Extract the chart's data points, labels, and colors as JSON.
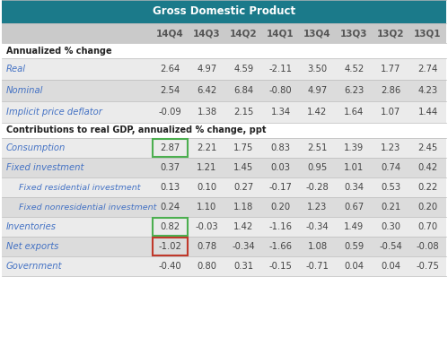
{
  "title": "Gross Domestic Product",
  "columns": [
    "14Q4",
    "14Q3",
    "14Q2",
    "14Q1",
    "13Q4",
    "13Q3",
    "13Q2",
    "13Q1"
  ],
  "section1_header": "Annualized % change",
  "section1_rows": [
    [
      "Real",
      "2.64",
      "4.97",
      "4.59",
      "-2.11",
      "3.50",
      "4.52",
      "1.77",
      "2.74"
    ],
    [
      "Nominal",
      "2.54",
      "6.42",
      "6.84",
      "-0.80",
      "4.97",
      "6.23",
      "2.86",
      "4.23"
    ],
    [
      "Implicit price deflator",
      "-0.09",
      "1.38",
      "2.15",
      "1.34",
      "1.42",
      "1.64",
      "1.07",
      "1.44"
    ]
  ],
  "section2_header": "Contributions to real GDP, annualized % change, ppt",
  "section2_rows": [
    [
      "Consumption",
      "2.87",
      "2.21",
      "1.75",
      "0.83",
      "2.51",
      "1.39",
      "1.23",
      "2.45"
    ],
    [
      "Fixed investment",
      "0.37",
      "1.21",
      "1.45",
      "0.03",
      "0.95",
      "1.01",
      "0.74",
      "0.42"
    ],
    [
      "Fixed residential investment",
      "0.13",
      "0.10",
      "0.27",
      "-0.17",
      "-0.28",
      "0.34",
      "0.53",
      "0.22"
    ],
    [
      "Fixed nonresidential investment",
      "0.24",
      "1.10",
      "1.18",
      "0.20",
      "1.23",
      "0.67",
      "0.21",
      "0.20"
    ],
    [
      "Inventories",
      "0.82",
      "-0.03",
      "1.42",
      "-1.16",
      "-0.34",
      "1.49",
      "0.30",
      "0.70"
    ],
    [
      "Net exports",
      "-1.02",
      "0.78",
      "-0.34",
      "-1.66",
      "1.08",
      "0.59",
      "-0.54",
      "-0.08"
    ],
    [
      "Government",
      "-0.40",
      "0.80",
      "0.31",
      "-0.15",
      "-0.71",
      "0.04",
      "0.04",
      "-0.75"
    ]
  ],
  "title_bg": "#1B7A8A",
  "title_color": "#FFFFFF",
  "header_bg": "#CACACA",
  "header_color": "#555555",
  "section_header_color": "#222222",
  "row_label_color_s1": "#4472C4",
  "row_label_color_s2": "#4472C4",
  "row_value_color": "#444444",
  "row_bg_odd": "#EBEBEB",
  "row_bg_even": "#DCDCDC",
  "section_header_bg": "#FFFFFF",
  "green_box_color": "#4CAF50",
  "red_box_color": "#C0392B",
  "subrow_indent": 14,
  "title_fontsize": 8.5,
  "header_fontsize": 7.5,
  "section_header_fontsize": 7.0,
  "data_fontsize": 7.2,
  "sub_label_fontsize": 6.8
}
